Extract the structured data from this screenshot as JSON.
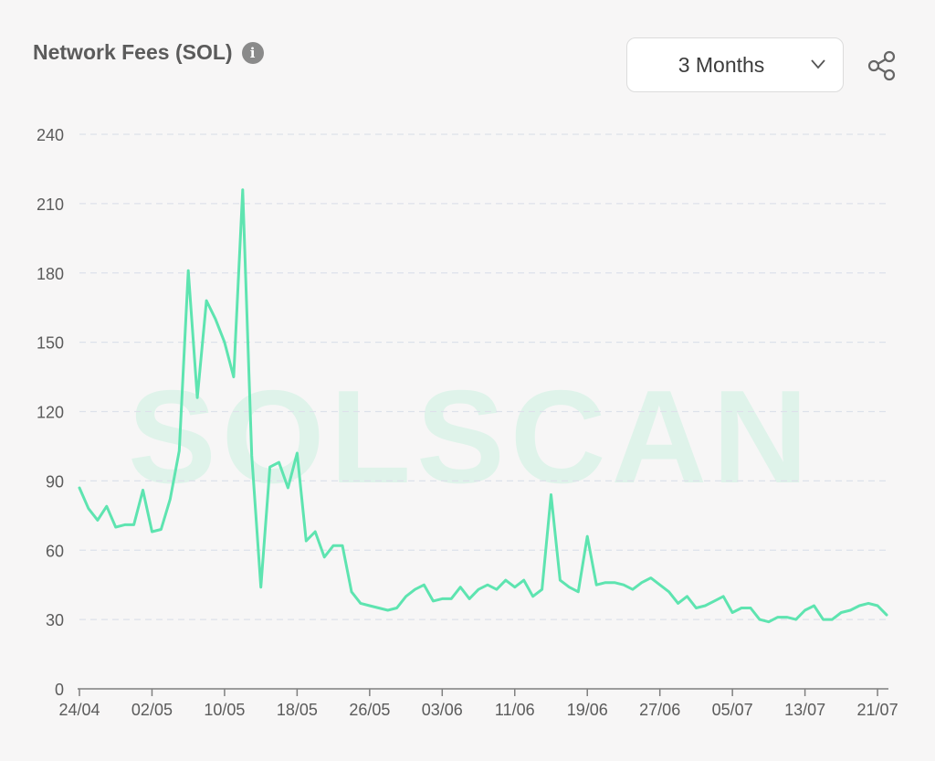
{
  "header": {
    "title": "Network Fees (SOL)",
    "info_icon": "info-icon"
  },
  "range_select": {
    "value": "3 Months",
    "icon": "chevron-down-icon"
  },
  "share": {
    "icon": "share-icon"
  },
  "watermark": "SOLSCAN",
  "colors": {
    "line": "#5ee4b0",
    "grid": "#dde1ea",
    "axis": "#7f7f7f",
    "text": "#5b5b5b"
  },
  "chart_data": {
    "type": "line",
    "title": "Network Fees (SOL)",
    "xlabel": "",
    "ylabel": "",
    "ylim": [
      0,
      240
    ],
    "yticks": [
      0,
      30,
      60,
      90,
      120,
      150,
      180,
      210,
      240
    ],
    "grid": true,
    "x_tick_labels": [
      "24/04",
      "02/05",
      "10/05",
      "18/05",
      "26/05",
      "03/06",
      "11/06",
      "19/06",
      "27/06",
      "05/07",
      "13/07",
      "21/07"
    ],
    "x_tick_index": [
      0,
      8,
      16,
      24,
      32,
      40,
      48,
      56,
      64,
      72,
      80,
      88
    ],
    "series": [
      {
        "values": [
          87,
          78,
          73,
          79,
          70,
          71,
          71,
          86,
          68,
          69,
          82,
          103,
          181,
          126,
          168,
          160,
          150,
          135,
          216,
          101,
          44,
          96,
          98,
          87,
          102,
          64,
          68,
          57,
          62,
          62,
          42,
          37,
          36,
          35,
          34,
          35,
          40,
          43,
          45,
          38,
          39,
          39,
          44,
          39,
          43,
          45,
          43,
          47,
          44,
          47,
          40,
          43,
          84,
          47,
          44,
          42,
          66,
          45,
          46,
          46,
          45,
          43,
          46,
          48,
          45,
          42,
          37,
          40,
          35,
          36,
          38,
          40,
          33,
          35,
          35,
          30,
          29,
          31,
          31,
          30,
          34,
          36,
          30,
          30,
          33,
          34,
          36,
          37,
          36,
          32
        ]
      }
    ]
  }
}
